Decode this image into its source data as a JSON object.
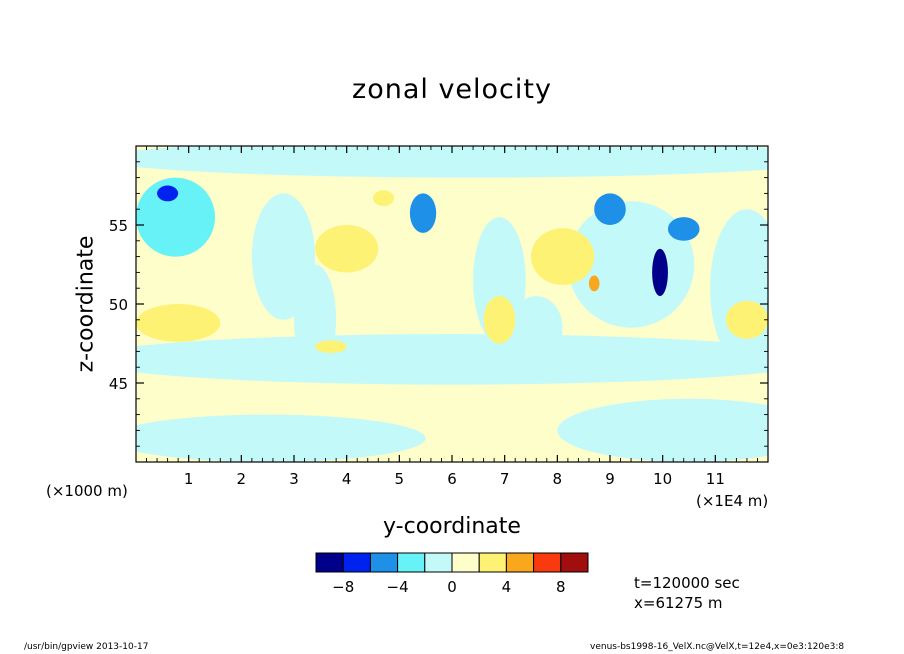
{
  "chart_data": {
    "type": "heatmap",
    "title": "zonal velocity",
    "xlabel": "y-coordinate",
    "ylabel": "z-coordinate",
    "x_unit_note": "(×1000 m)",
    "x_unit_right": "(×1E4 m)",
    "xlim": [
      0,
      12
    ],
    "ylim": [
      40,
      60
    ],
    "x_ticks": [
      "1",
      "2",
      "3",
      "4",
      "5",
      "6",
      "7",
      "8",
      "9",
      "10",
      "11"
    ],
    "y_ticks": [
      "45",
      "50",
      "55"
    ],
    "colorbar": {
      "levels": [
        -10,
        -8,
        -6,
        -4,
        -2,
        0,
        2,
        4,
        6,
        8,
        10
      ],
      "tick_labels": [
        "−8",
        "−4",
        "0",
        "4",
        "8"
      ],
      "colors": [
        "#00008b",
        "#0022ee",
        "#1e90e8",
        "#66f2f6",
        "#c4f9f9",
        "#fefecb",
        "#fdf274",
        "#f9a81e",
        "#f83a0e",
        "#a00e0e"
      ]
    },
    "features": [
      {
        "color": "#66f2f6",
        "region": "upper-left",
        "y_range": [
          0,
          1.5
        ],
        "z_range": [
          53,
          58
        ]
      },
      {
        "color": "#0022ee",
        "region": "upper-left core",
        "y_range": [
          0.4,
          0.8
        ],
        "z_range": [
          56.5,
          57.5
        ]
      },
      {
        "color": "#1e90e8",
        "region": "y≈5.4 z≈56",
        "y_range": [
          5.2,
          5.7
        ],
        "z_range": [
          54.5,
          57
        ]
      },
      {
        "color": "#1e90e8",
        "region": "y≈9 z≈56",
        "y_range": [
          8.7,
          9.3
        ],
        "z_range": [
          55,
          57
        ]
      },
      {
        "color": "#00008b",
        "region": "y≈9.9 z≈52",
        "y_range": [
          9.8,
          10.1
        ],
        "z_range": [
          50.5,
          53.5
        ]
      },
      {
        "color": "#1e90e8",
        "region": "y≈10.4 z≈55",
        "y_range": [
          10.1,
          10.7
        ],
        "z_range": [
          54,
          55.5
        ]
      },
      {
        "color": "#fdf274",
        "region": "y≈7 z≈49",
        "y_range": [
          6.6,
          7.2
        ],
        "z_range": [
          47.5,
          50.5
        ]
      },
      {
        "color": "#f9a81e",
        "region": "y≈8.7 z≈51",
        "y_range": [
          8.6,
          8.8
        ],
        "z_range": [
          50.8,
          51.8
        ]
      }
    ]
  },
  "info": {
    "time": "t=120000 sec",
    "x_position": "x=61275 m"
  },
  "footer": {
    "left": "/usr/bin/gpview  2013-10-17",
    "right": "venus-bs1998-16_VelX.nc@VelX,t=12e4,x=0e3:120e3:8"
  }
}
